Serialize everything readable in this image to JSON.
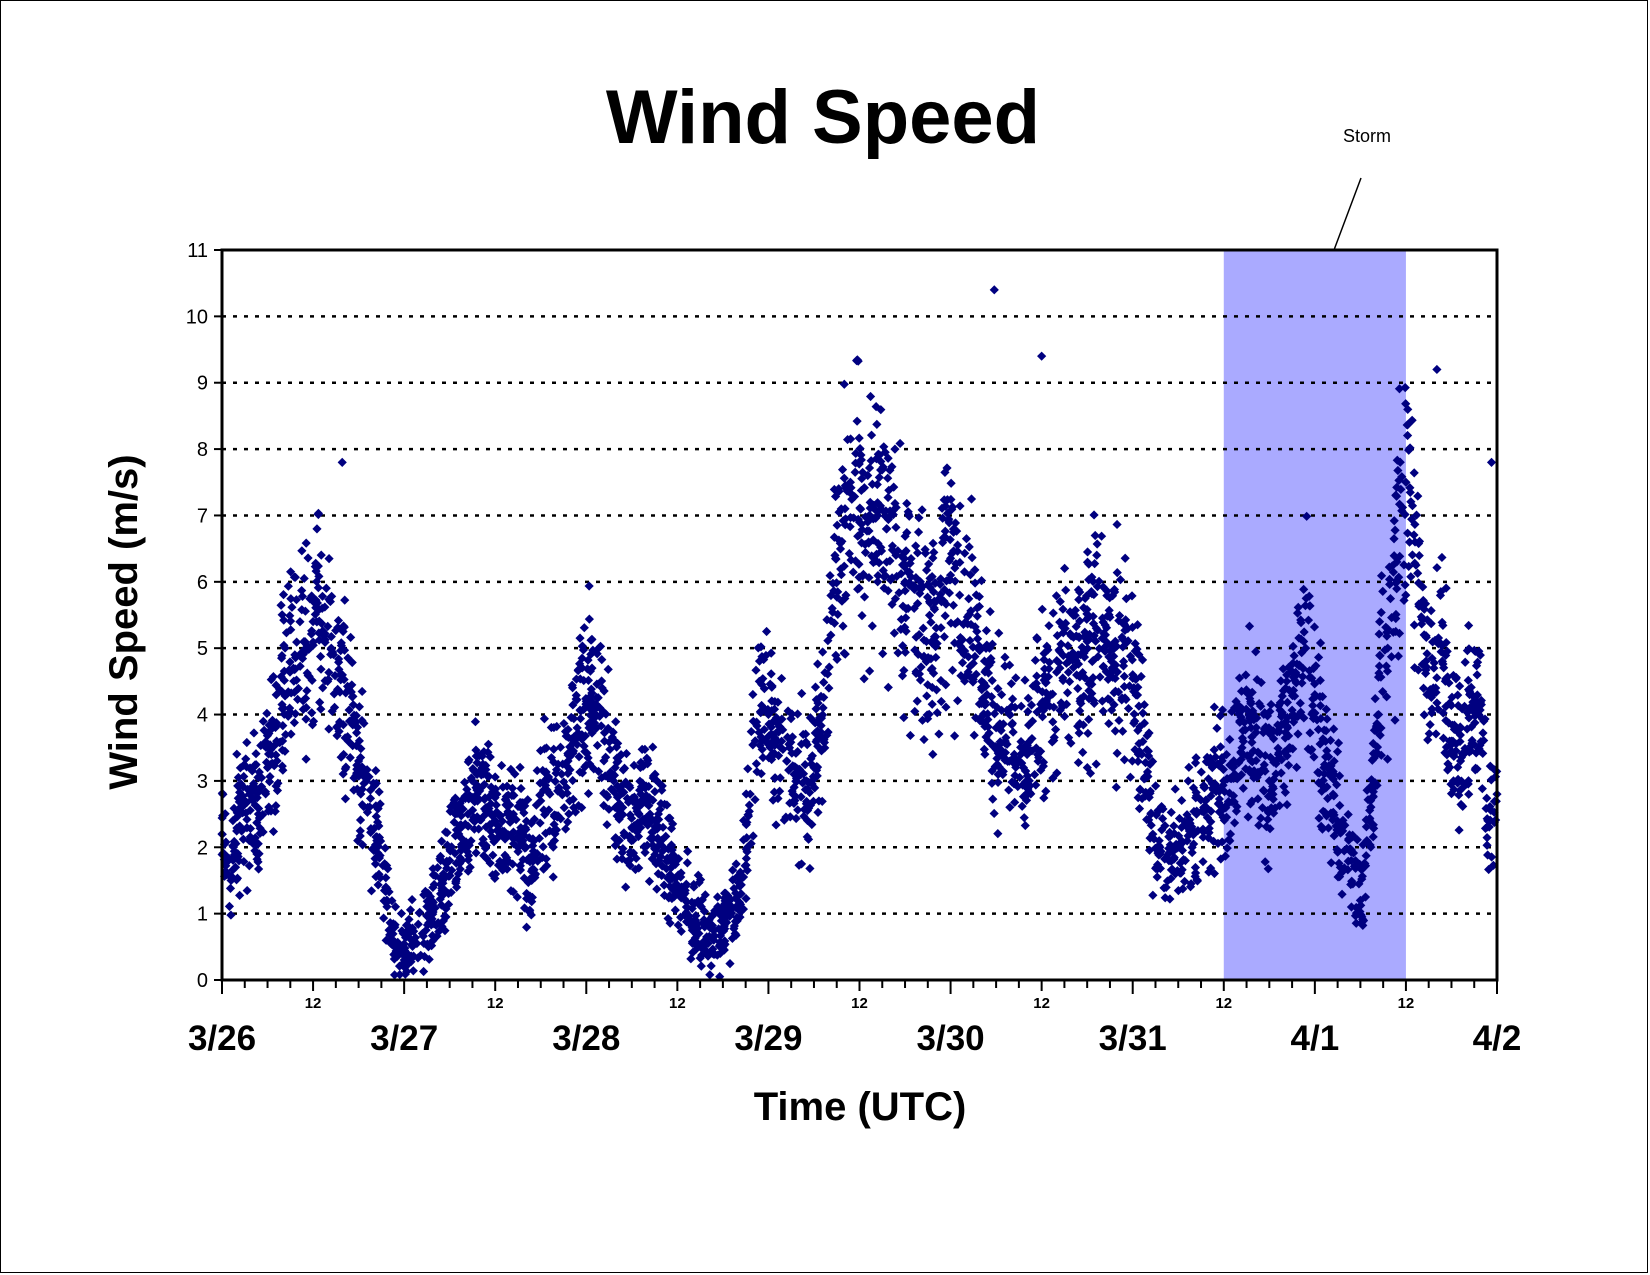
{
  "chart_data": {
    "type": "scatter",
    "title": "Wind Speed",
    "xlabel": "Time (UTC)",
    "ylabel": "Wind Speed (m/s)",
    "ylim": [
      0,
      11
    ],
    "yticks": [
      "0",
      "1",
      "2",
      "3",
      "4",
      "5",
      "6",
      "7",
      "8",
      "9",
      "10",
      "11"
    ],
    "xlim_days": [
      0,
      7
    ],
    "xticks": [
      "3/26",
      "3/27",
      "3/28",
      "3/29",
      "3/30",
      "3/31",
      "4/1",
      "4/2"
    ],
    "x_subtick_label": "12",
    "grid": "horizontal dotted",
    "marker": "diamond",
    "series_color": "#000080",
    "highlight": {
      "label": "Storm",
      "x_start": 5.5,
      "x_end": 6.5,
      "color": "#aaaaff"
    },
    "series": [
      {
        "x": [
          0.0,
          0.05,
          0.1,
          0.15,
          0.2,
          0.25,
          0.3,
          0.35,
          0.4,
          0.45,
          0.5,
          0.55,
          0.6,
          0.65,
          0.7,
          0.75,
          0.8,
          0.85,
          0.9,
          0.95,
          1.0,
          1.05,
          1.1,
          1.15,
          1.2,
          1.25,
          1.3,
          1.35,
          1.4,
          1.45,
          1.5,
          1.55,
          1.6,
          1.65,
          1.7,
          1.75,
          1.8,
          1.85,
          1.9,
          1.95,
          2.0,
          2.05,
          2.1,
          2.15,
          2.2,
          2.25,
          2.3,
          2.35,
          2.4,
          2.45,
          2.5,
          2.55,
          2.6,
          2.65,
          2.7,
          2.75,
          2.8,
          2.85,
          2.9,
          2.95,
          3.0,
          3.05,
          3.1,
          3.15,
          3.2,
          3.25,
          3.3,
          3.35,
          3.4,
          3.45,
          3.5,
          3.55,
          3.6,
          3.65,
          3.7,
          3.75,
          3.8,
          3.85,
          3.9,
          3.95,
          4.0,
          4.05,
          4.1,
          4.15,
          4.2,
          4.25,
          4.3,
          4.35,
          4.4,
          4.45,
          4.5,
          4.55,
          4.6,
          4.65,
          4.7,
          4.75,
          4.8,
          4.85,
          4.9,
          4.95,
          5.0,
          5.05,
          5.1,
          5.15,
          5.2,
          5.25,
          5.3,
          5.35,
          5.4,
          5.45,
          5.5,
          5.55,
          5.6,
          5.65,
          5.7,
          5.75,
          5.8,
          5.85,
          5.9,
          5.95,
          6.0,
          6.05,
          6.1,
          6.15,
          6.2,
          6.25,
          6.3,
          6.35,
          6.4,
          6.45,
          6.5,
          6.55,
          6.6,
          6.65,
          6.7,
          6.75,
          6.8,
          6.85,
          6.9,
          6.95,
          7.0
        ],
        "y": [
          2.2,
          1.5,
          2.6,
          2.8,
          2.5,
          3.2,
          3.6,
          4.3,
          4.9,
          5.1,
          5.4,
          5.6,
          5.0,
          4.6,
          3.9,
          3.3,
          2.6,
          2.1,
          1.4,
          0.5,
          0.4,
          0.6,
          0.7,
          1.0,
          1.3,
          1.8,
          2.2,
          2.5,
          2.8,
          2.6,
          2.4,
          2.2,
          2.5,
          2.1,
          1.5,
          2.7,
          2.8,
          2.9,
          3.3,
          3.8,
          4.2,
          4.0,
          3.6,
          3.0,
          2.6,
          2.3,
          2.8,
          2.5,
          2.1,
          1.8,
          1.4,
          1.1,
          0.9,
          0.8,
          0.6,
          0.9,
          1.1,
          1.3,
          2.8,
          4.5,
          4.0,
          3.6,
          3.3,
          3.1,
          3.0,
          3.2,
          4.1,
          5.6,
          7.1,
          7.5,
          6.9,
          6.6,
          7.0,
          6.8,
          6.4,
          6.0,
          5.6,
          5.3,
          5.1,
          5.7,
          6.1,
          5.8,
          5.5,
          5.0,
          4.3,
          3.8,
          3.6,
          3.4,
          3.2,
          3.9,
          4.1,
          4.3,
          4.7,
          4.8,
          4.9,
          5.1,
          5.3,
          5.2,
          5.0,
          4.8,
          4.6,
          3.4,
          2.5,
          2.0,
          1.8,
          2.0,
          2.3,
          2.5,
          2.7,
          2.9,
          3.0,
          3.2,
          3.5,
          3.8,
          3.4,
          3.0,
          3.4,
          3.8,
          4.6,
          5.0,
          4.3,
          3.2,
          2.8,
          2.3,
          1.8,
          1.2,
          2.4,
          4.0,
          5.0,
          6.3,
          7.5,
          6.6,
          5.2,
          4.4,
          4.8,
          3.6,
          3.3,
          4.1,
          4.0,
          2.4,
          2.8
        ]
      }
    ],
    "annotated_peaks": [
      {
        "x": 0.66,
        "y": 7.8
      },
      {
        "x": 4.24,
        "y": 10.4
      },
      {
        "x": 4.5,
        "y": 9.4
      },
      {
        "x": 6.67,
        "y": 9.2
      },
      {
        "x": 6.97,
        "y": 7.8
      }
    ]
  }
}
